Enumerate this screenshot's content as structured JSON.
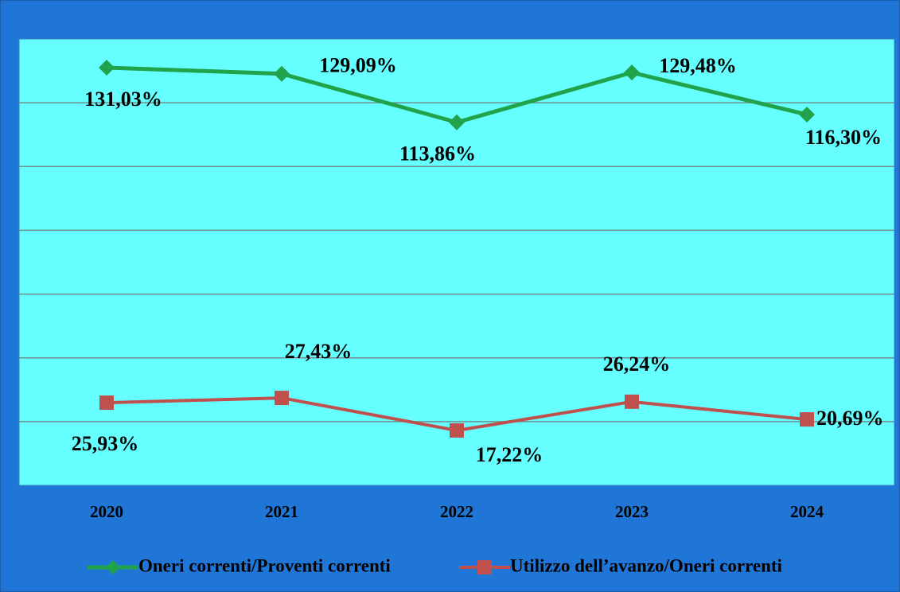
{
  "chart_data": {
    "type": "line",
    "categories": [
      "2020",
      "2021",
      "2022",
      "2023",
      "2024"
    ],
    "series": [
      {
        "name": "Oneri correnti/Proventi correnti",
        "color": "#20a34a",
        "marker": "diamond",
        "values": [
          131.03,
          129.09,
          113.86,
          129.48,
          116.3
        ],
        "value_labels": [
          "131,03%",
          "129,09%",
          "113,86%",
          "129,48%",
          "116,30%"
        ]
      },
      {
        "name": "Utilizzo dell’avanzo/Oneri correnti",
        "color": "#c0504d",
        "marker": "square",
        "values": [
          25.93,
          27.43,
          17.22,
          26.24,
          20.69
        ],
        "value_labels": [
          "25,93%",
          "27,43%",
          "17,22%",
          "26,24%",
          "20,69%"
        ]
      }
    ],
    "ylim": [
      0,
      140
    ],
    "yticks": [
      20,
      40,
      60,
      80,
      100,
      120
    ],
    "grid": true,
    "legend": "bottom"
  }
}
